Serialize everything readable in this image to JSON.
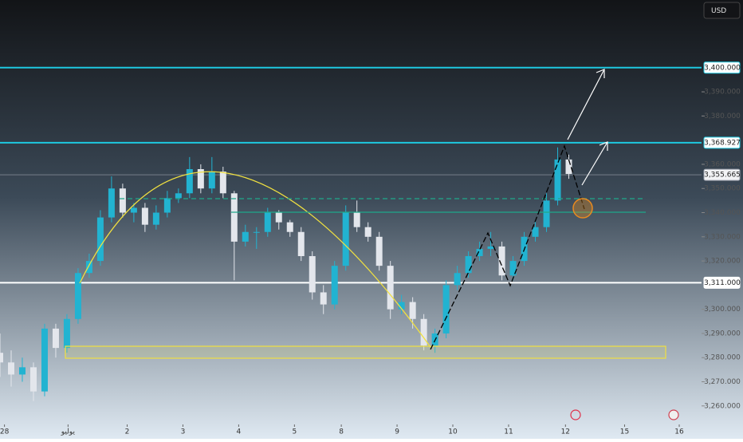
{
  "chart_data": {
    "type": "candlestick",
    "currency": "USD",
    "x": [
      0,
      1,
      2,
      3,
      4,
      5,
      6,
      7,
      8,
      9,
      10,
      11,
      12,
      13,
      14,
      15,
      16,
      17,
      18,
      19,
      20,
      21,
      22,
      23,
      24,
      25,
      26,
      27,
      28,
      29,
      30,
      31,
      32,
      33,
      34,
      35,
      36,
      37,
      38,
      39,
      40,
      41,
      42,
      43,
      44,
      45,
      46,
      47,
      48,
      49,
      50,
      51
    ],
    "open": [
      3282,
      3278,
      3273,
      3276,
      3266,
      3292,
      3284,
      3296,
      3315,
      3320,
      3338,
      3350,
      3340,
      3342,
      3335,
      3340,
      3346,
      3348,
      3358,
      3350,
      3357,
      3348,
      3328,
      3332,
      3332,
      3340,
      3336,
      3332,
      3322,
      3307,
      3302,
      3318,
      3340,
      3334,
      3330,
      3318,
      3300,
      3303,
      3296,
      3285,
      3290,
      3310,
      3315,
      3322,
      3325,
      3326,
      3314,
      3320,
      3330,
      3334,
      3345,
      3362
    ],
    "high": [
      3290,
      3283,
      3280,
      3278,
      3294,
      3294,
      3298,
      3317,
      3323,
      3341,
      3355,
      3352,
      3344,
      3344,
      3343,
      3349,
      3350,
      3363,
      3360,
      3363,
      3359,
      3349,
      3335,
      3334,
      3342,
      3341,
      3337,
      3334,
      3324,
      3310,
      3320,
      3343,
      3345,
      3336,
      3332,
      3320,
      3306,
      3305,
      3298,
      3292,
      3312,
      3318,
      3324,
      3328,
      3332,
      3328,
      3322,
      3332,
      3337,
      3348,
      3367,
      3364
    ],
    "low": [
      3272,
      3268,
      3270,
      3262,
      3264,
      3280,
      3282,
      3294,
      3313,
      3318,
      3336,
      3338,
      3336,
      3332,
      3333,
      3338,
      3344,
      3346,
      3348,
      3348,
      3346,
      3312,
      3326,
      3325,
      3330,
      3333,
      3330,
      3320,
      3304,
      3298,
      3300,
      3316,
      3332,
      3328,
      3316,
      3296,
      3298,
      3292,
      3283,
      3282,
      3288,
      3308,
      3313,
      3320,
      3322,
      3312,
      3312,
      3318,
      3328,
      3332,
      3343,
      3354
    ],
    "close": [
      3278,
      3273,
      3276,
      3266,
      3292,
      3284,
      3296,
      3315,
      3320,
      3338,
      3350,
      3340,
      3342,
      3335,
      3340,
      3346,
      3348,
      3358,
      3350,
      3357,
      3348,
      3328,
      3332,
      3332,
      3340,
      3336,
      3332,
      3322,
      3307,
      3302,
      3318,
      3340,
      3334,
      3330,
      3318,
      3300,
      3303,
      3296,
      3285,
      3290,
      3310,
      3315,
      3322,
      3325,
      3326,
      3314,
      3320,
      3330,
      3334,
      3345,
      3362,
      3356
    ],
    "up_color": "#22b3d1",
    "down_color": "#e3e6ec",
    "xlim": [
      0,
      62.9
    ],
    "xticks": [
      {
        "value": 0.4,
        "label": "28"
      },
      {
        "value": 6.1,
        "label": "يوليو"
      },
      {
        "value": 11.4,
        "label": "2"
      },
      {
        "value": 16.4,
        "label": "3"
      },
      {
        "value": 21.4,
        "label": "4"
      },
      {
        "value": 26.4,
        "label": "5"
      },
      {
        "value": 30.6,
        "label": "8"
      },
      {
        "value": 35.6,
        "label": "9"
      },
      {
        "value": 40.6,
        "label": "10"
      },
      {
        "value": 45.6,
        "label": "11"
      },
      {
        "value": 50.7,
        "label": "12"
      },
      {
        "value": 56,
        "label": "15"
      },
      {
        "value": 60.9,
        "label": "16"
      }
    ],
    "ylim": [
      3253,
      3428
    ],
    "yticks": [
      {
        "value": 3260,
        "label": "3,260.000"
      },
      {
        "value": 3270,
        "label": "3,270.000"
      },
      {
        "value": 3280,
        "label": "3,280.000"
      },
      {
        "value": 3290,
        "label": "3,290.000"
      },
      {
        "value": 3300,
        "label": "3,300.000"
      },
      {
        "value": 3320,
        "label": "3,320.000"
      },
      {
        "value": 3330,
        "label": "3,330.000"
      },
      {
        "value": 3340,
        "label": "3,340.000"
      },
      {
        "value": 3350,
        "label": "3,350.000"
      },
      {
        "value": 3360,
        "label": "3,360.000"
      },
      {
        "value": 3380,
        "label": "3,380.000"
      },
      {
        "value": 3390,
        "label": "3,390.000"
      }
    ],
    "levels": [
      {
        "value": 3400,
        "label": "3,400.000",
        "color": "#1ec8e0"
      },
      {
        "value": 3368.927,
        "label": "3,368.927",
        "color": "#1ec8e0"
      },
      {
        "value": 3355.665,
        "label": "3,355.665",
        "color": "#9aa0aa"
      },
      {
        "value": 3311,
        "label": "3,311.000",
        "color": "#ffffff"
      }
    ]
  }
}
